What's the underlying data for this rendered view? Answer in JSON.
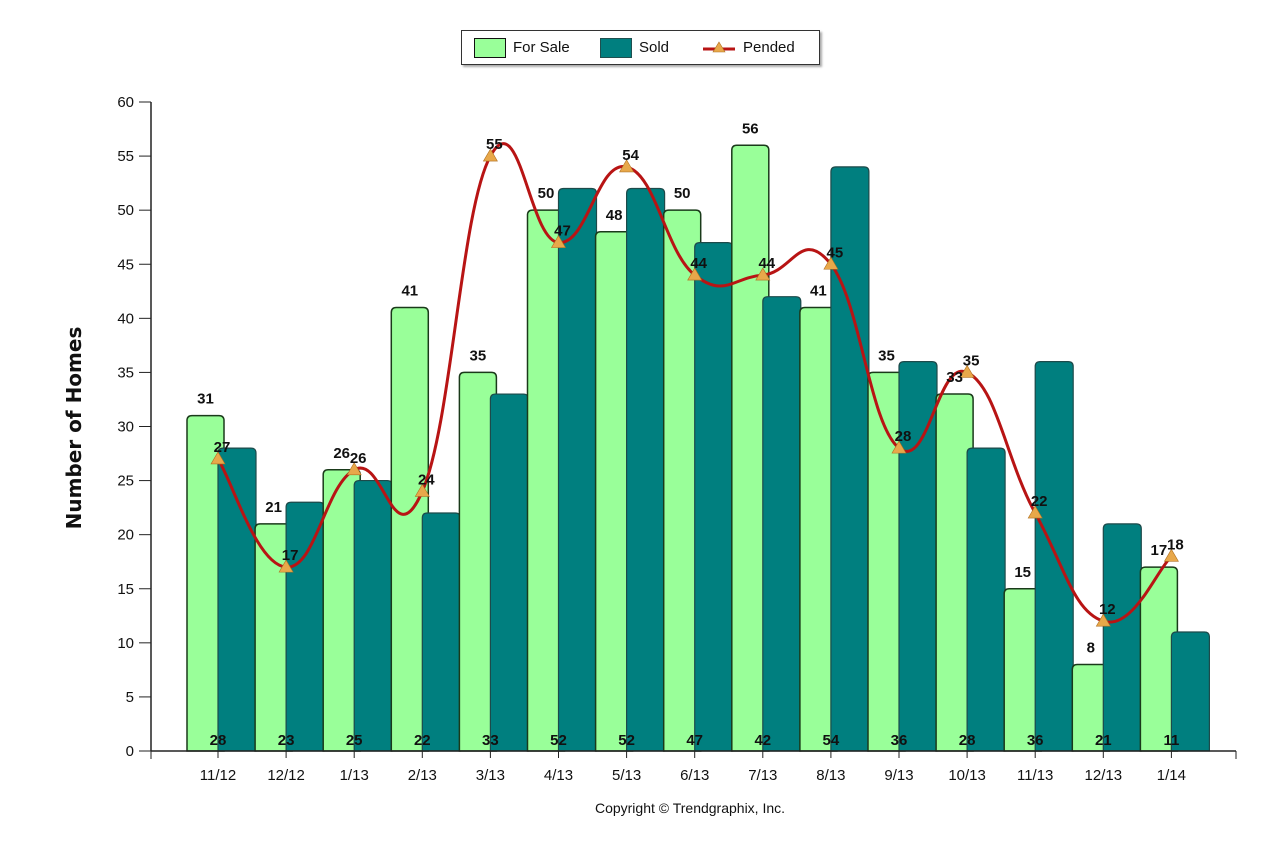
{
  "chart_data": {
    "type": "bar",
    "title": "",
    "xlabel": "",
    "ylabel": "Number of Homes",
    "ylim": [
      0,
      60
    ],
    "yticks": [
      0,
      5,
      10,
      15,
      20,
      25,
      30,
      35,
      40,
      45,
      50,
      55,
      60
    ],
    "grid": false,
    "legend_position": "top-center",
    "categories": [
      "11/12",
      "12/12",
      "1/13",
      "2/13",
      "3/13",
      "4/13",
      "5/13",
      "6/13",
      "7/13",
      "8/13",
      "9/13",
      "10/13",
      "11/13",
      "12/13",
      "1/14"
    ],
    "series": [
      {
        "name": "For Sale",
        "type": "bar",
        "color": "#99FF99",
        "values": [
          31,
          21,
          26,
          41,
          35,
          50,
          48,
          50,
          56,
          41,
          35,
          33,
          15,
          8,
          17
        ]
      },
      {
        "name": "Sold",
        "type": "bar",
        "color": "#007F7F",
        "values": [
          28,
          23,
          25,
          22,
          33,
          52,
          52,
          47,
          42,
          54,
          36,
          28,
          36,
          21,
          11
        ]
      },
      {
        "name": "Pended",
        "type": "line",
        "color": "#B81414",
        "marker_color": "#E8A84A",
        "values": [
          27,
          17,
          26,
          24,
          55,
          47,
          54,
          44,
          44,
          45,
          28,
          35,
          22,
          12,
          18
        ]
      }
    ]
  },
  "legend": {
    "for_sale": "For Sale",
    "sold": "Sold",
    "pended": "Pended"
  },
  "footer": {
    "copyright": "Copyright © Trendgraphix, Inc."
  }
}
